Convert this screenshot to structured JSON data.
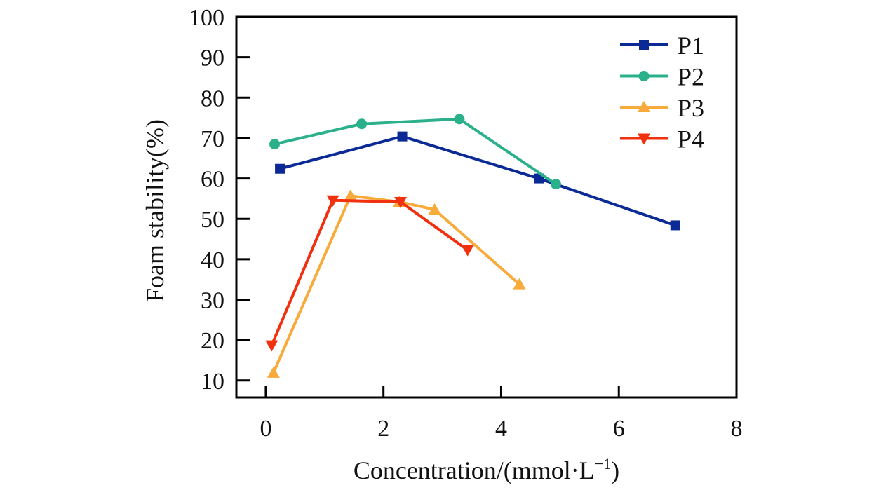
{
  "chart_data": {
    "type": "line",
    "title": "",
    "xlabel": "Concentration/(mmol·L",
    "xlabel_sup": "−1",
    "xlabel_close": ")",
    "ylabel": "Foam stability(%)",
    "xlim": [
      -0.5,
      8
    ],
    "ylim": [
      5.8,
      100
    ],
    "xticks": [
      0,
      2,
      4,
      6,
      8
    ],
    "yticks": [
      10,
      20,
      30,
      40,
      50,
      60,
      70,
      80,
      90,
      100
    ],
    "grid": false,
    "legend_position": "top-right",
    "series": [
      {
        "name": "P1",
        "color": "#0b2a96",
        "marker": "square",
        "x": [
          0.24,
          2.32,
          4.64,
          6.96
        ],
        "y": [
          62.4,
          70.4,
          60.0,
          48.4
        ]
      },
      {
        "name": "P2",
        "color": "#2bb08c",
        "marker": "circle",
        "x": [
          0.15,
          1.63,
          3.29,
          4.93
        ],
        "y": [
          68.5,
          73.5,
          74.7,
          58.6
        ]
      },
      {
        "name": "P3",
        "color": "#f8aa3a",
        "marker": "triangle-up",
        "x": [
          0.13,
          1.44,
          2.27,
          2.87,
          4.31
        ],
        "y": [
          11.9,
          55.7,
          54.2,
          52.3,
          33.8
        ]
      },
      {
        "name": "P4",
        "color": "#f0300e",
        "marker": "triangle-down",
        "x": [
          0.1,
          1.14,
          2.29,
          3.43
        ],
        "y": [
          18.7,
          54.6,
          54.2,
          42.3
        ]
      }
    ]
  }
}
